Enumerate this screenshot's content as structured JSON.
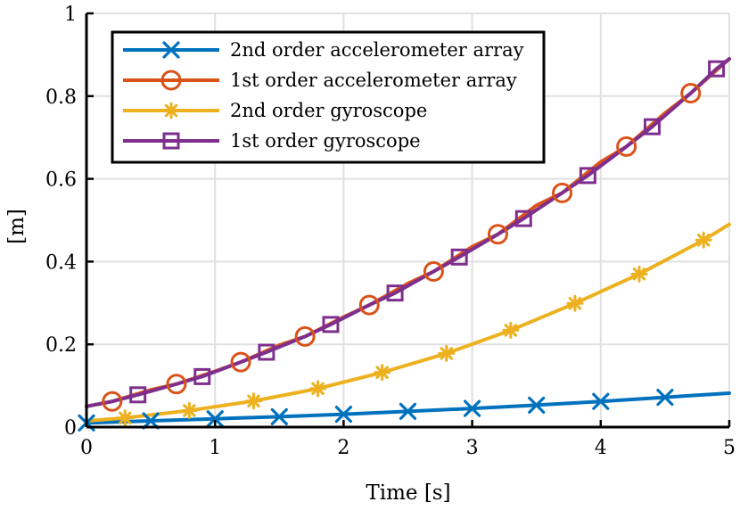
{
  "chart_data": {
    "type": "line",
    "xlabel": "Time [s]",
    "ylabel": "[m]",
    "xlim": [
      0,
      5
    ],
    "ylim": [
      0,
      1
    ],
    "xticks": [
      0,
      1,
      2,
      3,
      4,
      5
    ],
    "yticks": [
      0,
      0.2,
      0.4,
      0.6,
      0.8,
      1
    ],
    "xtick_labels": [
      "0",
      "1",
      "2",
      "3",
      "4",
      "5"
    ],
    "ytick_labels": [
      "0",
      "0.2",
      "0.4",
      "0.6",
      "0.8",
      "1"
    ],
    "grid": true,
    "legend_position": "top-left",
    "series": [
      {
        "name": "2nd order accelerometer array",
        "color": "#0072BD",
        "marker": "x-icon",
        "x": [
          0,
          0.5,
          1,
          1.5,
          2,
          2.5,
          3,
          3.5,
          4,
          4.5,
          5
        ],
        "y": [
          0.01,
          0.015,
          0.02,
          0.025,
          0.031,
          0.038,
          0.045,
          0.053,
          0.062,
          0.072,
          0.082
        ],
        "marker_x": [
          0,
          0.5,
          1,
          1.5,
          2,
          2.5,
          3,
          3.5,
          4,
          4.5
        ],
        "marker_y": [
          0.01,
          0.015,
          0.02,
          0.025,
          0.031,
          0.038,
          0.045,
          0.053,
          0.062,
          0.072
        ]
      },
      {
        "name": "1st order accelerometer array",
        "color": "#D95319",
        "marker": "circle-icon",
        "x": [
          0,
          0.2,
          0.5,
          0.7,
          1.0,
          1.2,
          1.5,
          1.7,
          2.0,
          2.2,
          2.5,
          2.7,
          3.0,
          3.2,
          3.5,
          3.7,
          4.0,
          4.2,
          4.5,
          4.7,
          5.0
        ],
        "y": [
          0.05,
          0.062,
          0.09,
          0.104,
          0.135,
          0.157,
          0.198,
          0.219,
          0.266,
          0.295,
          0.347,
          0.376,
          0.436,
          0.466,
          0.536,
          0.566,
          0.641,
          0.678,
          0.759,
          0.807,
          0.89
        ],
        "marker_x": [
          0.2,
          0.7,
          1.2,
          1.7,
          2.2,
          2.7,
          3.2,
          3.7,
          4.2,
          4.7
        ],
        "marker_y": [
          0.062,
          0.104,
          0.157,
          0.219,
          0.295,
          0.376,
          0.466,
          0.566,
          0.678,
          0.807
        ]
      },
      {
        "name": "2nd order gyroscope",
        "color": "#EDB120",
        "marker": "asterisk-icon",
        "x": [
          0,
          0.3,
          0.8,
          1.3,
          1.8,
          2.3,
          2.8,
          3.3,
          3.8,
          4.3,
          4.8,
          5.0
        ],
        "y": [
          0.015,
          0.022,
          0.04,
          0.063,
          0.093,
          0.132,
          0.178,
          0.234,
          0.299,
          0.37,
          0.452,
          0.49
        ],
        "marker_x": [
          0.3,
          0.8,
          1.3,
          1.8,
          2.3,
          2.8,
          3.3,
          3.8,
          4.3,
          4.8
        ],
        "marker_y": [
          0.022,
          0.04,
          0.063,
          0.093,
          0.132,
          0.178,
          0.234,
          0.299,
          0.37,
          0.452
        ]
      },
      {
        "name": "1st order gyroscope",
        "color": "#7E2F8E",
        "marker": "square-icon",
        "x": [
          0,
          0.2,
          0.4,
          0.7,
          0.9,
          1.2,
          1.4,
          1.7,
          1.9,
          2.2,
          2.4,
          2.7,
          2.9,
          3.2,
          3.4,
          3.7,
          3.9,
          4.2,
          4.4,
          4.7,
          4.9,
          5.0
        ],
        "y": [
          0.05,
          0.062,
          0.078,
          0.104,
          0.122,
          0.157,
          0.181,
          0.219,
          0.248,
          0.295,
          0.324,
          0.376,
          0.411,
          0.466,
          0.504,
          0.566,
          0.608,
          0.678,
          0.726,
          0.807,
          0.866,
          0.89
        ],
        "marker_x": [
          0.4,
          0.9,
          1.4,
          1.9,
          2.4,
          2.9,
          3.4,
          3.9,
          4.4,
          4.9
        ],
        "marker_y": [
          0.078,
          0.122,
          0.181,
          0.248,
          0.324,
          0.411,
          0.504,
          0.608,
          0.726,
          0.866
        ]
      }
    ]
  }
}
